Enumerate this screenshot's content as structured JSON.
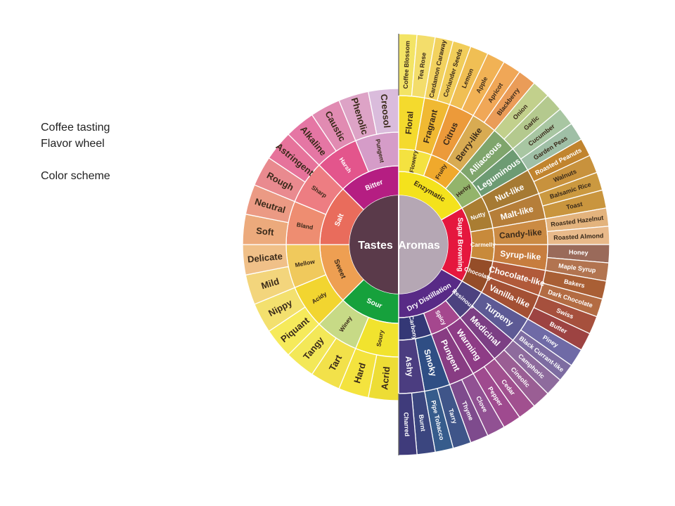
{
  "caption": {
    "line1": "Coffee tasting",
    "line2": "Flavor wheel",
    "line3": "Color scheme"
  },
  "wheel": {
    "center_left": "Tastes",
    "center_right": "Aromas",
    "tastes": {
      "rings": [
        [
          "Sour",
          "Sweet",
          "Salt",
          "Bitter"
        ],
        [
          "Soury",
          "Winey",
          "Acidy",
          "Mellow",
          "Bland",
          "Sharp",
          "Harsh",
          "Pungent"
        ],
        [
          "Acrid",
          "Hard",
          "Tart",
          "Tangy",
          "Piquant",
          "Nippy",
          "Mild",
          "Delicate",
          "Soft",
          "Neutral",
          "Rough",
          "Astringent",
          "Alkaline",
          "Caustic",
          "Phenolic",
          "Creosol"
        ]
      ],
      "colors": [
        [
          "#16a13c",
          "#ee9f52",
          "#e96c5c",
          "#b51e82"
        ],
        [
          "#f1e32e",
          "#c7da86",
          "#f2d530",
          "#f0c95c",
          "#ee8d71",
          "#ed7d82",
          "#e3558c",
          "#d59cc8"
        ],
        [
          "#eddd35",
          "#f4e33e",
          "#f2e14a",
          "#f3e858",
          "#f6ea5b",
          "#f3e06e",
          "#f3d57c",
          "#f0c088",
          "#ecaa7c",
          "#eb9a84",
          "#e98a8f",
          "#e6739b",
          "#e576a4",
          "#e18bb2",
          "#dda3c6",
          "#dabcdc"
        ]
      ]
    },
    "aromas": {
      "rings": [
        [
          "Enzymatic",
          "Sugar Browning",
          "Dry Distillation"
        ],
        [
          "Flowery",
          "Fruity",
          "Herby",
          "Nutty",
          "Carmelly",
          "Chocolaty",
          "Resinous",
          "Spicy",
          "Carbony"
        ],
        [
          "Floral",
          "Fragrant",
          "Citrus",
          "Berry-like",
          "Alliaceous",
          "Leguminous",
          "Nut-like",
          "Malt-like",
          "Candy-like",
          "Syrup-like",
          "Chocolate-like",
          "Vanilla-like",
          "Turpeny",
          "Medicinal",
          "Warming",
          "Pungent",
          "Smoky",
          "Ashy"
        ],
        [
          "Coffee Blossom",
          "Tea Rose",
          "Cardamon Caraway",
          "Coriander Seeds",
          "Lemon",
          "Apple",
          "Apricot",
          "Blackberry",
          "Onion",
          "Garlic",
          "Cucumber",
          "Garden Peas",
          "Roasted Peanuts",
          "Walnuts",
          "Balsamic Rice",
          "Toast",
          "Roasted Hazelnut",
          "Roasted Almond",
          "Honey",
          "Maple Syrup",
          "Bakers",
          "Dark Chocolate",
          "Swiss",
          "Butter",
          "Piney",
          "Black Currant-like",
          "Camphoric",
          "Cineolic",
          "Cedar",
          "Pepper",
          "Clove",
          "Thyme",
          "Tarry",
          "Pipe Tobacco",
          "Burnt",
          "Charred"
        ]
      ],
      "colors": [
        [
          "#f4e21c",
          "#e5173e",
          "#582a86"
        ],
        [
          "#f4e240",
          "#f0a92c",
          "#93b46b",
          "#aa7d32",
          "#c88a3b",
          "#954d28",
          "#4c427f",
          "#a5478e",
          "#343876"
        ],
        [
          "#f4da2d",
          "#f0b932",
          "#ec9a3a",
          "#d8ab52",
          "#7fa56c",
          "#6d9b73",
          "#a67a33",
          "#b67e39",
          "#cb8b44",
          "#c77d3e",
          "#b15a3a",
          "#a35034",
          "#5d5a95",
          "#7c3f84",
          "#8e3c86",
          "#883c83",
          "#2f4e84",
          "#4b3d80"
        ],
        [
          "#f3e465",
          "#f3dd6b",
          "#f2d25f",
          "#f1cd5a",
          "#f0bf54",
          "#f1b255",
          "#f0a757",
          "#ea9c58",
          "#c2d08c",
          "#b4c98e",
          "#a8c6a2",
          "#9fbfa6",
          "#c1842e",
          "#c8923d",
          "#cb9940",
          "#c9953e",
          "#e3b37d",
          "#e8b98a",
          "#9a6a5a",
          "#b27450",
          "#a95f35",
          "#b36c43",
          "#a6503d",
          "#9d4342",
          "#6f6aa6",
          "#7d6ca1",
          "#8e6b9d",
          "#9a5e94",
          "#a1508f",
          "#9f4a8f",
          "#915193",
          "#7e4b8d",
          "#3f5589",
          "#365c8c",
          "#3b467f",
          "#3f3b7b"
        ]
      ]
    }
  }
}
